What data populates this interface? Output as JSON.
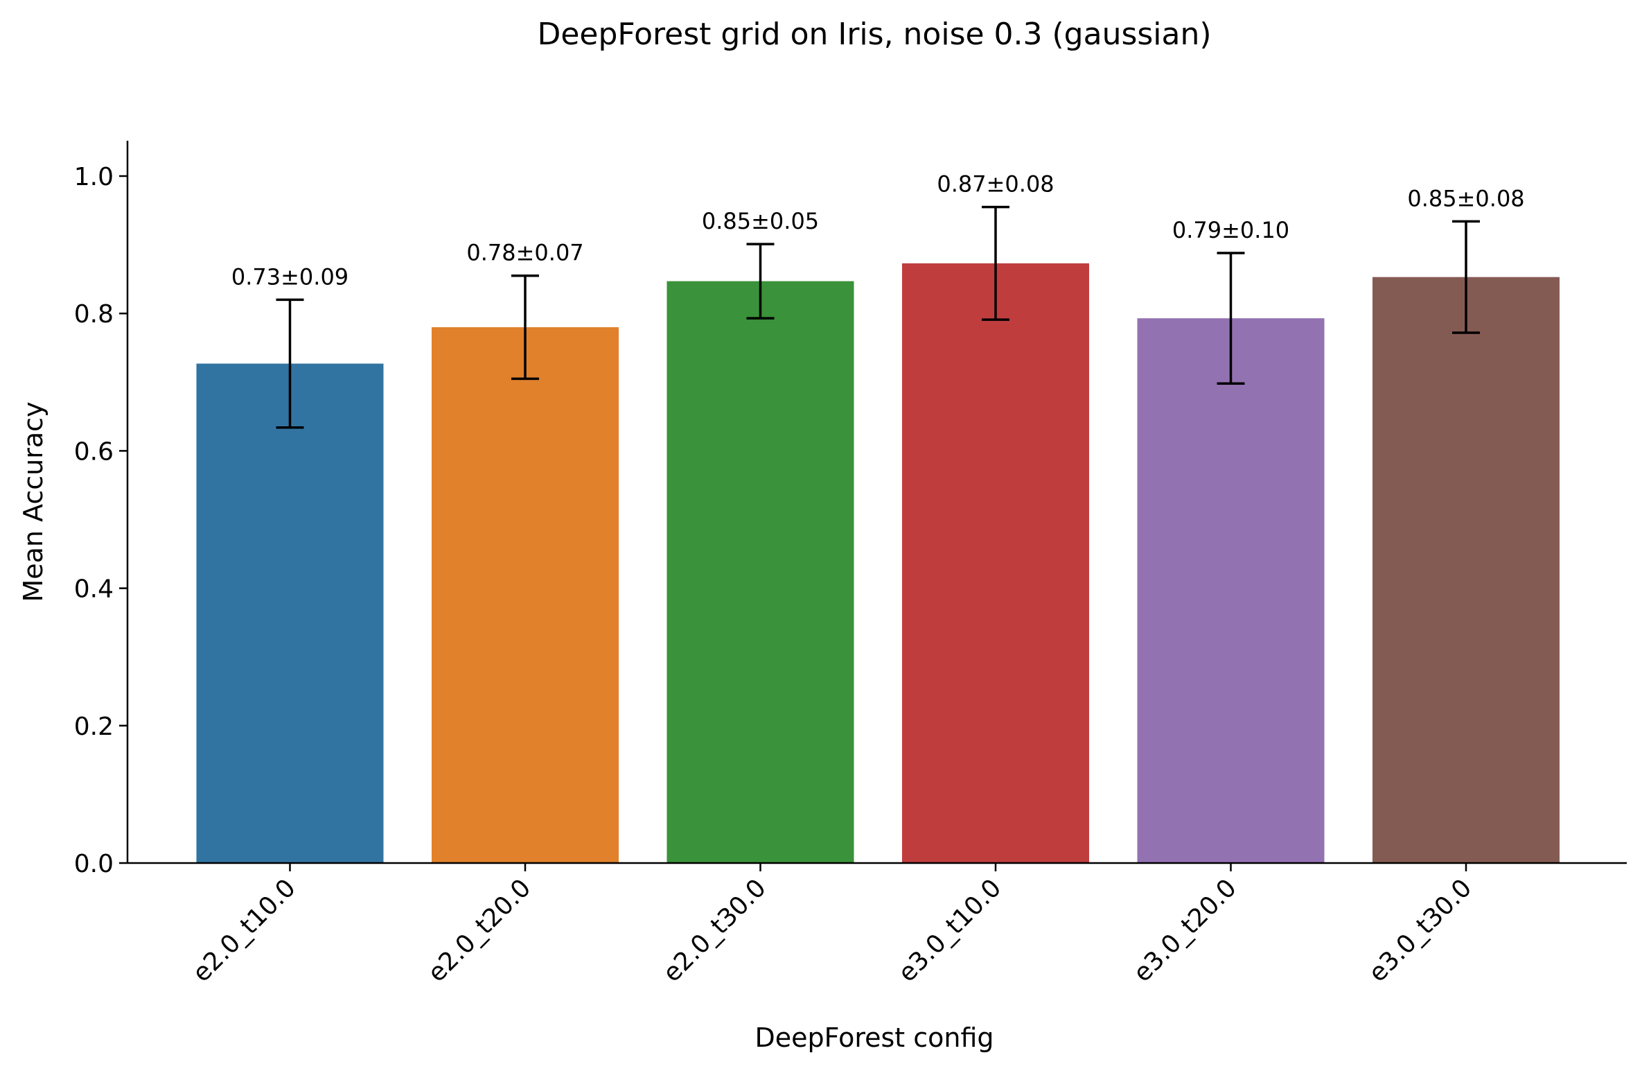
{
  "chart_data": {
    "type": "bar",
    "title": "DeepForest grid on Iris, noise 0.3 (gaussian)",
    "xlabel": "DeepForest config",
    "ylabel": "Mean Accuracy",
    "ylim": [
      0,
      1.05
    ],
    "yticks": [
      0.0,
      0.2,
      0.4,
      0.6,
      0.8,
      1.0
    ],
    "ytick_labels": [
      "0.0",
      "0.2",
      "0.4",
      "0.6",
      "0.8",
      "1.0"
    ],
    "grid": false,
    "legend": "none",
    "categories": [
      "e2.0_t10.0",
      "e2.0_t20.0",
      "e2.0_t30.0",
      "e3.0_t10.0",
      "e3.0_t20.0",
      "e3.0_t30.0"
    ],
    "values": [
      0.727,
      0.78,
      0.847,
      0.873,
      0.793,
      0.853
    ],
    "errors": [
      0.093,
      0.075,
      0.054,
      0.082,
      0.095,
      0.081
    ],
    "data_labels": [
      "0.73±0.09",
      "0.78±0.07",
      "0.85±0.05",
      "0.87±0.08",
      "0.79±0.10",
      "0.85±0.08"
    ],
    "colors": [
      "#3274a1",
      "#e1812c",
      "#3a923a",
      "#c03d3e",
      "#9372b2",
      "#845b53"
    ]
  }
}
